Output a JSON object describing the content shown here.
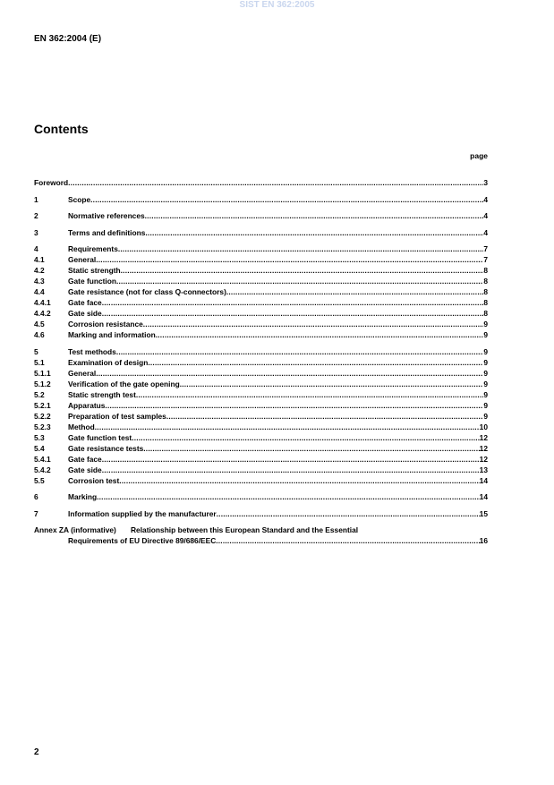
{
  "watermark": "SIST EN 362:2005",
  "doc_id": "EN 362:2004 (E)",
  "title": "Contents",
  "page_label": "page",
  "toc": [
    {
      "num": "",
      "title": "Foreword",
      "page": "3",
      "gap": false,
      "full": true
    },
    {
      "num": "1",
      "title": "Scope ",
      "page": "4",
      "gap": true
    },
    {
      "num": "2",
      "title": "Normative references ",
      "page": "4",
      "gap": true
    },
    {
      "num": "3",
      "title": "Terms and definitions ",
      "page": "4",
      "gap": true
    },
    {
      "num": "4",
      "title": "Requirements",
      "page": "7",
      "gap": true
    },
    {
      "num": "4.1",
      "title": "General",
      "page": "7"
    },
    {
      "num": "4.2",
      "title": "Static strength",
      "page": "8"
    },
    {
      "num": "4.3",
      "title": "Gate function",
      "page": "8"
    },
    {
      "num": "4.4",
      "title": "Gate resistance (not for class Q-connectors)",
      "page": "8"
    },
    {
      "num": "4.4.1",
      "title": "Gate face",
      "page": "8"
    },
    {
      "num": "4.4.2",
      "title": "Gate side ",
      "page": "8"
    },
    {
      "num": "4.5",
      "title": "Corrosion resistance ",
      "page": "9"
    },
    {
      "num": "4.6",
      "title": "Marking and information",
      "page": "9"
    },
    {
      "num": "5",
      "title": "Test methods",
      "page": "9",
      "gap": true
    },
    {
      "num": "5.1",
      "title": "Examination of design ",
      "page": "9"
    },
    {
      "num": "5.1.1",
      "title": "General",
      "page": "9"
    },
    {
      "num": "5.1.2",
      "title": "Verification of the gate opening",
      "page": "9"
    },
    {
      "num": "5.2",
      "title": "Static strength test ",
      "page": "9"
    },
    {
      "num": "5.2.1",
      "title": "Apparatus ",
      "page": "9"
    },
    {
      "num": "5.2.2",
      "title": "Preparation of test samples",
      "page": "9"
    },
    {
      "num": "5.2.3",
      "title": "Method ",
      "page": "10"
    },
    {
      "num": "5.3",
      "title": "Gate function test ",
      "page": "12"
    },
    {
      "num": "5.4",
      "title": "Gate resistance tests",
      "page": "12"
    },
    {
      "num": "5.4.1",
      "title": "Gate face",
      "page": "12"
    },
    {
      "num": "5.4.2",
      "title": "Gate side",
      "page": "13"
    },
    {
      "num": "5.5",
      "title": "Corrosion test ",
      "page": "14"
    },
    {
      "num": "6",
      "title": "Marking ",
      "page": "14",
      "gap": true
    },
    {
      "num": "7",
      "title": "Information supplied by the manufacturer ",
      "page": "15",
      "gap": true
    }
  ],
  "annex": {
    "label": "Annex ZA (informative)",
    "title_line1": "Relationship between this European Standard and the Essential",
    "title_line2": "Requirements of EU Directive 89/686/EEC",
    "page": "16"
  },
  "footer_page": "2"
}
